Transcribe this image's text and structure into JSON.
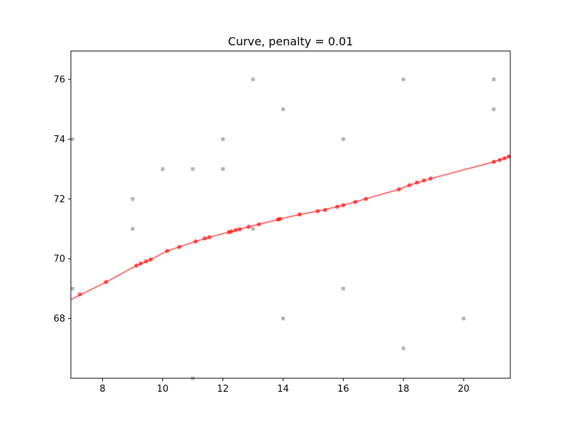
{
  "chart_data": {
    "type": "scatter",
    "title": "Curve, penalty = 0.01",
    "xlabel": "",
    "ylabel": "",
    "xlim": [
      6.95,
      21.55
    ],
    "ylim": [
      66.0,
      76.95
    ],
    "xticks": [
      8,
      10,
      12,
      14,
      16,
      18,
      20
    ],
    "yticks": [
      68,
      70,
      72,
      74,
      76
    ],
    "grid": false,
    "colors": {
      "observed": "#808080",
      "fit": "#ff0000",
      "axes": "#000000"
    },
    "series": [
      {
        "role": "observed",
        "marker": "square",
        "points": [
          [
            7,
            74
          ],
          [
            7,
            69
          ],
          [
            9,
            72
          ],
          [
            9,
            71
          ],
          [
            10,
            73
          ],
          [
            11,
            73
          ],
          [
            11,
            66
          ],
          [
            12,
            74
          ],
          [
            12,
            73
          ],
          [
            13,
            76
          ],
          [
            13,
            71
          ],
          [
            14,
            75
          ],
          [
            14,
            68
          ],
          [
            16,
            74
          ],
          [
            16,
            69
          ],
          [
            18,
            76
          ],
          [
            18,
            67
          ],
          [
            20,
            68
          ],
          [
            21,
            76
          ],
          [
            21,
            75
          ]
        ]
      },
      {
        "role": "fit",
        "marker": "circle",
        "line": [
          [
            6.95,
            68.63
          ],
          [
            8.12,
            69.22
          ],
          [
            9.13,
            69.77
          ],
          [
            9.6,
            69.97
          ],
          [
            10.15,
            70.26
          ],
          [
            11.1,
            70.58
          ],
          [
            11.55,
            70.72
          ],
          [
            12.2,
            70.89
          ],
          [
            12.86,
            71.07
          ],
          [
            13.2,
            71.15
          ],
          [
            13.9,
            71.33
          ],
          [
            14.55,
            71.48
          ],
          [
            15.15,
            71.59
          ],
          [
            15.8,
            71.74
          ],
          [
            16.0,
            71.79
          ],
          [
            16.75,
            72.0
          ],
          [
            17.85,
            72.32
          ],
          [
            18.2,
            72.46
          ],
          [
            18.9,
            72.68
          ],
          [
            21.0,
            73.24
          ],
          [
            21.55,
            73.43
          ]
        ],
        "points": [
          [
            7.25,
            68.81
          ],
          [
            8.12,
            69.22
          ],
          [
            9.13,
            69.77
          ],
          [
            9.27,
            69.84
          ],
          [
            9.45,
            69.91
          ],
          [
            9.6,
            69.97
          ],
          [
            10.15,
            70.26
          ],
          [
            10.55,
            70.39
          ],
          [
            11.1,
            70.58
          ],
          [
            11.4,
            70.68
          ],
          [
            11.55,
            70.72
          ],
          [
            12.2,
            70.89
          ],
          [
            12.28,
            70.91
          ],
          [
            12.43,
            70.96
          ],
          [
            12.56,
            70.98
          ],
          [
            12.86,
            71.07
          ],
          [
            13.2,
            71.15
          ],
          [
            13.83,
            71.31
          ],
          [
            13.9,
            71.33
          ],
          [
            14.55,
            71.48
          ],
          [
            15.15,
            71.59
          ],
          [
            15.4,
            71.63
          ],
          [
            15.8,
            71.74
          ],
          [
            16.0,
            71.79
          ],
          [
            16.4,
            71.9
          ],
          [
            16.75,
            72.0
          ],
          [
            17.85,
            72.32
          ],
          [
            18.2,
            72.46
          ],
          [
            18.45,
            72.55
          ],
          [
            18.68,
            72.62
          ],
          [
            18.9,
            72.68
          ],
          [
            21.0,
            73.24
          ],
          [
            21.2,
            73.3
          ],
          [
            21.36,
            73.36
          ],
          [
            21.5,
            73.42
          ]
        ]
      }
    ]
  }
}
